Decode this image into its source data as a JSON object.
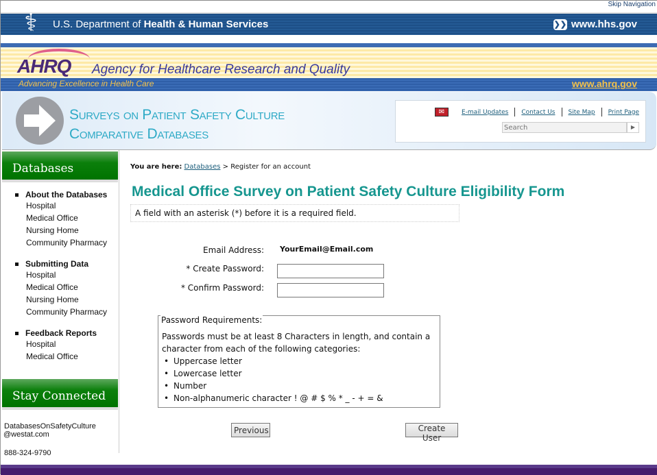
{
  "top": {
    "skip_nav": "Skip Navigation",
    "hhs_prefix": "U.S. Department of ",
    "hhs_bold": "Health & Human Services",
    "hhs_url": "www.hhs.gov"
  },
  "ahrq": {
    "logo": "AHRQ",
    "name": "Agency for Healthcare Research and Quality",
    "tagline": "Advancing Excellence in Health Care",
    "url": "www.ahrq.gov"
  },
  "banner": {
    "title_line1": "Surveys on Patient Safety Culture",
    "title_line2": "Comparative Databases"
  },
  "utility": {
    "links": [
      "E-mail Updates",
      "Contact Us",
      "Site Map",
      "Print Page"
    ],
    "search_placeholder": "Search"
  },
  "sidebar": {
    "databases_heading": "Databases",
    "groups": [
      {
        "label": "About the Databases",
        "items": [
          "Hospital",
          "Medical Office",
          "Nursing Home",
          "Community Pharmacy"
        ]
      },
      {
        "label": "Submitting Data",
        "items": [
          "Hospital",
          "Medical Office",
          "Nursing Home",
          "Community Pharmacy"
        ]
      },
      {
        "label": "Feedback Reports",
        "items": [
          "Hospital",
          "Medical Office"
        ]
      }
    ],
    "stay_heading": "Stay Connected",
    "email_line1": "DatabasesOnSafetyCulture",
    "email_line2": "@westat.com",
    "phone": "888-324-9790"
  },
  "breadcrumb": {
    "prefix": "You are here:",
    "link": "Databases",
    "current": "> Register for an account"
  },
  "page_title": "Medical Office Survey on Patient Safety Culture Eligibility Form",
  "required_note": "A field with an asterisk (*) before it is a required field.",
  "form": {
    "email_label": "Email Address:",
    "email_value": "YourEmail@Email.com",
    "create_label": "*  Create Password:",
    "create_value": "",
    "confirm_label": "*  Confirm Password:",
    "confirm_value": ""
  },
  "requirements": {
    "legend": "Password Requirements:",
    "text": "Passwords must be at least 8 Characters in length, and contain a character from each of the following categories:",
    "items": [
      "Uppercase letter",
      "Lowercase letter",
      "Number",
      "Non-alphanumeric character ! @ # $ % * _ - + = &"
    ]
  },
  "buttons": {
    "previous": "Previous",
    "create": "Create User"
  }
}
